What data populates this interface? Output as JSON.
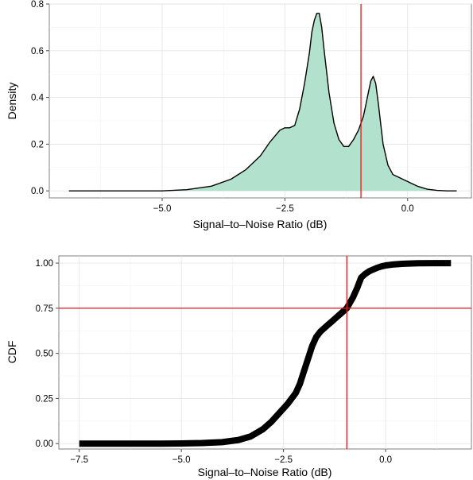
{
  "chart_data": [
    {
      "type": "area",
      "xlabel": "Signal–to–Noise Ratio (dB)",
      "ylabel": "Density",
      "xlim": [
        -7.3,
        1.3
      ],
      "ylim": [
        -0.03,
        0.8
      ],
      "xticks": [
        -5.0,
        -2.5,
        0.0
      ],
      "xtick_labels": [
        "−5.0",
        "−2.5",
        "0.0"
      ],
      "yticks": [
        0.0,
        0.2,
        0.4,
        0.6,
        0.8
      ],
      "ytick_labels": [
        "0.0",
        "0.2",
        "0.4",
        "0.6",
        "0.8"
      ],
      "grid": true,
      "fill_color": "#b2e2cd",
      "line_color": "#000000",
      "vline": {
        "x": -0.95,
        "color": "#e41a1c"
      },
      "series": [
        {
          "x": [
            -6.9,
            -6.0,
            -5.0,
            -4.5,
            -4.0,
            -3.6,
            -3.3,
            -3.0,
            -2.8,
            -2.6,
            -2.5,
            -2.4,
            -2.3,
            -2.2,
            -2.1,
            -2.0,
            -1.95,
            -1.9,
            -1.85,
            -1.8,
            -1.75,
            -1.7,
            -1.6,
            -1.5,
            -1.4,
            -1.3,
            -1.2,
            -1.1,
            -1.0,
            -0.95,
            -0.9,
            -0.85,
            -0.8,
            -0.75,
            -0.7,
            -0.65,
            -0.6,
            -0.5,
            -0.4,
            -0.3,
            -0.2,
            -0.1,
            0.0,
            0.1,
            0.2,
            0.4,
            0.6,
            0.8,
            1.0
          ],
          "y": [
            0.0,
            0.0,
            0.0,
            0.005,
            0.02,
            0.05,
            0.09,
            0.15,
            0.21,
            0.26,
            0.27,
            0.27,
            0.28,
            0.35,
            0.46,
            0.59,
            0.68,
            0.73,
            0.76,
            0.76,
            0.7,
            0.6,
            0.42,
            0.29,
            0.22,
            0.19,
            0.19,
            0.22,
            0.26,
            0.29,
            0.32,
            0.37,
            0.42,
            0.47,
            0.49,
            0.46,
            0.38,
            0.2,
            0.11,
            0.07,
            0.06,
            0.05,
            0.04,
            0.03,
            0.02,
            0.007,
            0.002,
            0.0,
            0.0
          ]
        }
      ]
    },
    {
      "type": "line",
      "xlabel": "Signal–to–Noise Ratio (dB)",
      "ylabel": "CDF",
      "xlim": [
        -8.0,
        2.1
      ],
      "ylim": [
        -0.03,
        1.04
      ],
      "xticks": [
        -7.5,
        -5.0,
        -2.5,
        0.0
      ],
      "xtick_labels": [
        "−7.5",
        "−5.0",
        "−2.5",
        "0.0"
      ],
      "yticks": [
        0.0,
        0.25,
        0.5,
        0.75,
        1.0
      ],
      "ytick_labels": [
        "0.00",
        "0.25",
        "0.50",
        "0.75",
        "1.00"
      ],
      "grid": true,
      "line_color": "#000000",
      "vline": {
        "x": -0.95,
        "color": "#e41a1c"
      },
      "hline": {
        "y": 0.75,
        "color": "#e41a1c"
      },
      "series": [
        {
          "x": [
            -7.5,
            -6.5,
            -5.5,
            -5.0,
            -4.5,
            -4.0,
            -3.6,
            -3.3,
            -3.0,
            -2.8,
            -2.6,
            -2.4,
            -2.2,
            -2.1,
            -2.0,
            -1.9,
            -1.8,
            -1.7,
            -1.6,
            -1.5,
            -1.4,
            -1.3,
            -1.2,
            -1.1,
            -1.0,
            -0.95,
            -0.9,
            -0.8,
            -0.7,
            -0.6,
            -0.5,
            -0.4,
            -0.3,
            -0.2,
            -0.1,
            0.0,
            0.2,
            0.4,
            0.8,
            1.2,
            1.6
          ],
          "y": [
            0.0,
            0.0,
            0.0,
            0.001,
            0.003,
            0.008,
            0.02,
            0.04,
            0.08,
            0.12,
            0.17,
            0.22,
            0.28,
            0.33,
            0.4,
            0.47,
            0.54,
            0.59,
            0.62,
            0.64,
            0.66,
            0.68,
            0.7,
            0.72,
            0.74,
            0.75,
            0.77,
            0.81,
            0.86,
            0.92,
            0.94,
            0.955,
            0.965,
            0.975,
            0.982,
            0.987,
            0.993,
            0.996,
            0.999,
            1.0,
            1.0
          ]
        }
      ]
    }
  ]
}
